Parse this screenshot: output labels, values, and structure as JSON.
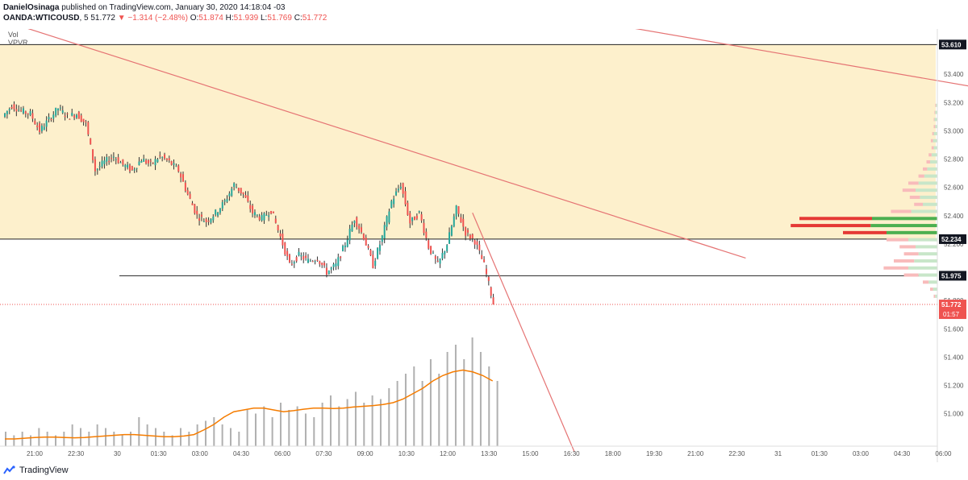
{
  "header": {
    "author": "DanielOsinaga",
    "published_text": "published on TradingView.com, January 30, 2020 14:18:04 -03",
    "symbol": "OANDA:WTICOUSD",
    "interval": "5",
    "last": "51.772",
    "change": "−1.314 (−2.48%)",
    "o_label": "O:",
    "o": "51.874",
    "h_label": "H:",
    "h": "51.939",
    "l_label": "L:",
    "l": "51.769",
    "c_label": "C:",
    "c": "51.772"
  },
  "indicators": {
    "vol": "Vol",
    "vpvr": "VPVR"
  },
  "footer": {
    "logo_text": "TradingView"
  },
  "colors": {
    "candle_up": "#26a69a",
    "candle_down": "#ef5350",
    "candle_wick": "#333333",
    "zone_fill": "#fdf0cc",
    "trendline": "#e57373",
    "volume_bar": "#b0b0b0",
    "volume_ma": "#f57c00",
    "vpvr_up_main": "#4caf50",
    "vpvr_down_main": "#e53935",
    "vpvr_up_light": "#c8e6c9",
    "vpvr_down_light": "#f8bbbb"
  },
  "chart_data": {
    "type": "candlestick",
    "price_axis": {
      "ticks": [
        "53.400",
        "53.200",
        "53.000",
        "52.800",
        "52.600",
        "52.400",
        "52.200",
        "51.800",
        "51.600",
        "51.400",
        "51.200",
        "51.000"
      ],
      "tick_values": [
        53.4,
        53.2,
        53.0,
        52.8,
        52.6,
        52.4,
        52.2,
        51.8,
        51.6,
        51.4,
        51.2,
        51.0
      ],
      "range": [
        50.77,
        53.72
      ]
    },
    "time_axis": {
      "labels": [
        "21:00",
        "22:30",
        "30",
        "01:30",
        "03:00",
        "04:30",
        "06:00",
        "07:30",
        "09:00",
        "10:30",
        "12:00",
        "13:30",
        "15:00",
        "16:30",
        "18:00",
        "19:30",
        "21:00",
        "22:30",
        "31",
        "01:30",
        "03:00",
        "04:30",
        "06:00"
      ]
    },
    "levels": [
      {
        "label": "53.610",
        "value": 53.61
      },
      {
        "label": "52.234",
        "value": 52.234
      },
      {
        "label": "51.975",
        "value": 51.975
      }
    ],
    "last_price": {
      "label": "51.772",
      "countdown": "01:57",
      "value": 51.772
    },
    "zone": {
      "top": 53.61,
      "bottom": 52.234
    },
    "price_path": [
      [
        0,
        53.1
      ],
      [
        4,
        53.18
      ],
      [
        8,
        53.14
      ],
      [
        12,
        53.12
      ],
      [
        16,
        53.0
      ],
      [
        20,
        53.08
      ],
      [
        24,
        53.16
      ],
      [
        28,
        53.1
      ],
      [
        32,
        53.12
      ],
      [
        36,
        53.05
      ],
      [
        40,
        52.72
      ],
      [
        44,
        52.78
      ],
      [
        48,
        52.82
      ],
      [
        52,
        52.76
      ],
      [
        56,
        52.72
      ],
      [
        60,
        52.8
      ],
      [
        64,
        52.76
      ],
      [
        68,
        52.82
      ],
      [
        72,
        52.78
      ],
      [
        76,
        52.72
      ],
      [
        80,
        52.55
      ],
      [
        84,
        52.4
      ],
      [
        88,
        52.36
      ],
      [
        92,
        52.42
      ],
      [
        96,
        52.5
      ],
      [
        100,
        52.62
      ],
      [
        104,
        52.55
      ],
      [
        108,
        52.42
      ],
      [
        112,
        52.38
      ],
      [
        116,
        52.44
      ],
      [
        120,
        52.25
      ],
      [
        124,
        52.05
      ],
      [
        128,
        52.12
      ],
      [
        132,
        52.08
      ],
      [
        136,
        52.1
      ],
      [
        140,
        52.0
      ],
      [
        144,
        52.05
      ],
      [
        148,
        52.2
      ],
      [
        152,
        52.38
      ],
      [
        156,
        52.25
      ],
      [
        160,
        52.05
      ],
      [
        164,
        52.25
      ],
      [
        168,
        52.5
      ],
      [
        172,
        52.62
      ],
      [
        176,
        52.35
      ],
      [
        180,
        52.42
      ],
      [
        184,
        52.18
      ],
      [
        188,
        52.05
      ],
      [
        192,
        52.2
      ],
      [
        196,
        52.45
      ],
      [
        200,
        52.28
      ],
      [
        204,
        52.22
      ],
      [
        208,
        52.05
      ],
      [
        212,
        51.78
      ]
    ],
    "volume": {
      "values": [
        4,
        3,
        4,
        3,
        5,
        4,
        3,
        4,
        6,
        5,
        4,
        6,
        5,
        4,
        3,
        4,
        8,
        6,
        5,
        4,
        3,
        5,
        4,
        6,
        7,
        8,
        6,
        5,
        4,
        10,
        9,
        11,
        8,
        12,
        10,
        11,
        9,
        8,
        12,
        14,
        11,
        13,
        15,
        12,
        14,
        13,
        16,
        18,
        20,
        22,
        18,
        24,
        20,
        26,
        28,
        24,
        30,
        26,
        22,
        18
      ],
      "ma": [
        2,
        2,
        2.2,
        2.4,
        2.5,
        2.5,
        2.4,
        2.3,
        2.4,
        2.6,
        2.8,
        3,
        3.2,
        3.2,
        3,
        2.8,
        2.6,
        2.6,
        2.8,
        3.2,
        4.5,
        6,
        8,
        9.5,
        10,
        10.5,
        10.5,
        10,
        9.5,
        9.8,
        10.2,
        10.5,
        10.5,
        10.4,
        10.5,
        10.8,
        11,
        11.2,
        11.5,
        12,
        13,
        14.5,
        16,
        18,
        19.5,
        20.5,
        21,
        20.5,
        19.5,
        18
      ]
    },
    "trendlines": [
      {
        "from": [
          -20,
          53.88
        ],
        "to": [
          320,
          52.1
        ]
      },
      {
        "from": [
          238,
          53.82
        ],
        "to": [
          440,
          53.25
        ]
      },
      {
        "from": [
          202,
          52.42
        ],
        "to": [
          246,
          50.73
        ]
      }
    ],
    "vpvr_rows": [
      [
        53.18,
        2,
        1
      ],
      [
        53.13,
        3,
        1
      ],
      [
        53.08,
        4,
        1
      ],
      [
        53.03,
        3,
        2
      ],
      [
        52.98,
        5,
        2
      ],
      [
        52.93,
        6,
        3
      ],
      [
        52.88,
        5,
        3
      ],
      [
        52.83,
        8,
        4
      ],
      [
        52.78,
        10,
        5
      ],
      [
        52.73,
        14,
        6
      ],
      [
        52.68,
        18,
        8
      ],
      [
        52.63,
        26,
        14
      ],
      [
        52.58,
        30,
        18
      ],
      [
        52.53,
        24,
        14
      ],
      [
        52.48,
        20,
        12
      ],
      [
        52.43,
        36,
        28
      ],
      [
        52.38,
        90,
        100
      ],
      [
        52.33,
        92,
        110
      ],
      [
        52.28,
        70,
        60
      ],
      [
        52.23,
        40,
        30
      ],
      [
        52.18,
        30,
        22
      ],
      [
        52.13,
        26,
        20
      ],
      [
        52.08,
        32,
        28
      ],
      [
        52.03,
        40,
        34
      ],
      [
        51.98,
        26,
        20
      ],
      [
        51.93,
        12,
        8
      ],
      [
        51.88,
        6,
        4
      ],
      [
        51.83,
        3,
        2
      ]
    ]
  }
}
